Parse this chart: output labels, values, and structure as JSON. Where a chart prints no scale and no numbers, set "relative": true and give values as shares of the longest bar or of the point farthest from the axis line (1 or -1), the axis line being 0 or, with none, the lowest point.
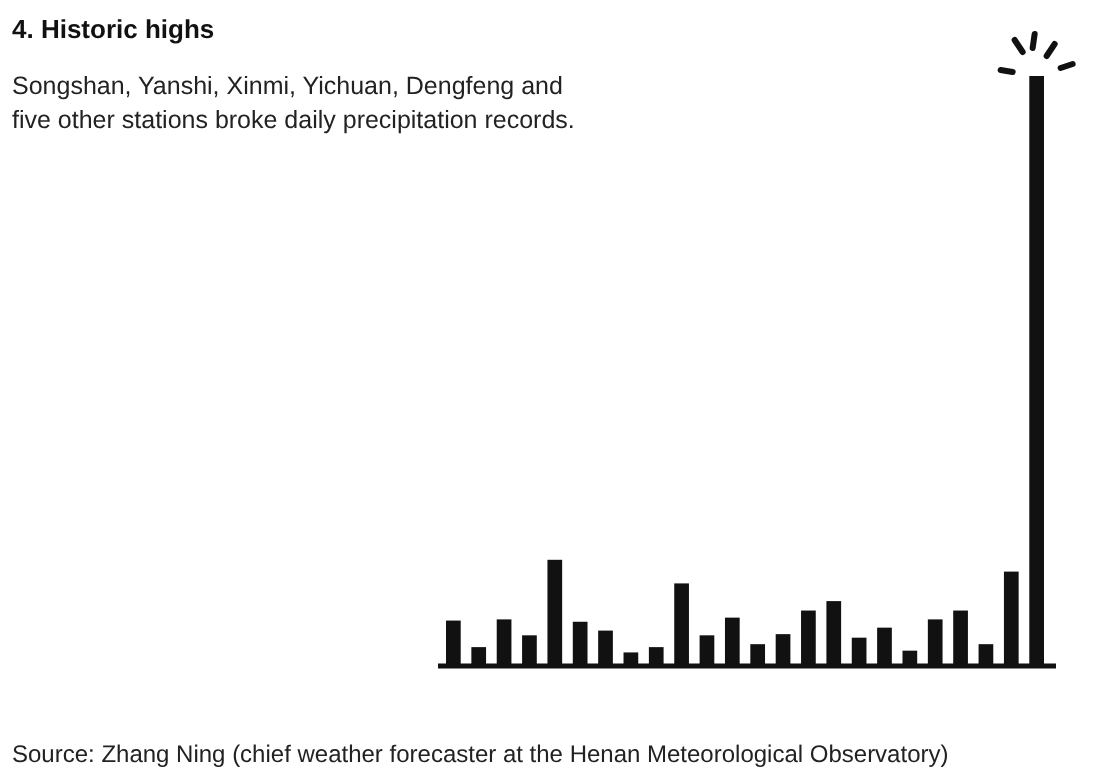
{
  "chart_data": {
    "type": "bar",
    "relative": true,
    "title": "4. Historic highs",
    "subtitle": "Songshan, Yanshi, Xinmi, Yichuan, Dengfeng and\nfive other stations broke daily precipitation records.",
    "annotations": [
      "Source: Zhang Ning (chief weather forecaster at the Henan Meteorological Observatory)"
    ],
    "categories": [
      null,
      null,
      null,
      null,
      null,
      null,
      null,
      null,
      null,
      null,
      null,
      null,
      null,
      null,
      null,
      null,
      null,
      null,
      null,
      null,
      null,
      null,
      null,
      null
    ],
    "color": "#111111",
    "values": [
      0.077,
      0.032,
      0.079,
      0.052,
      0.18,
      0.075,
      0.06,
      0.023,
      0.032,
      0.14,
      0.052,
      0.082,
      0.037,
      0.054,
      0.094,
      0.11,
      0.048,
      0.065,
      0.026,
      0.079,
      0.094,
      0.037,
      0.16,
      1
    ]
  }
}
